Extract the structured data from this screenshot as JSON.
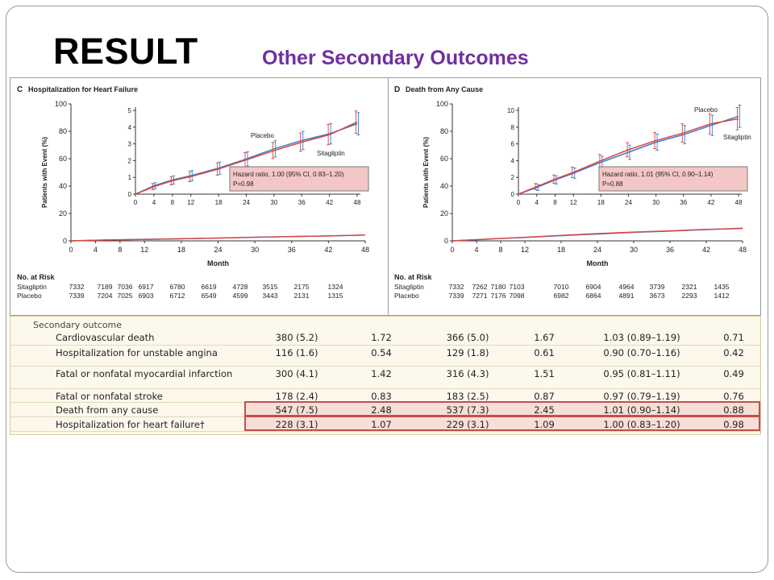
{
  "slide": {
    "title": "RESULT",
    "subtitle": "Other Secondary Outcomes"
  },
  "colors": {
    "sitagliptin": "#3a7bd5",
    "placebo": "#d9453b",
    "subtitle": "#7030a0",
    "highlight": "#c0504d"
  },
  "chart_data": [
    {
      "type": "line",
      "panel_label": "C",
      "title": "Hospitalization for Heart Failure",
      "xlabel": "Month",
      "ylabel": "Patients with Event (%)",
      "x_ticks": [
        0,
        4,
        8,
        12,
        18,
        24,
        30,
        36,
        42,
        48
      ],
      "y_ticks": [
        0,
        20,
        40,
        60,
        80,
        100
      ],
      "ylim": [
        0,
        100
      ],
      "inset": {
        "y_ticks": [
          0,
          1,
          2,
          3,
          4,
          5
        ],
        "ylim": [
          0,
          5
        ],
        "x_ticks": [
          0,
          4,
          8,
          12,
          18,
          24,
          30,
          36,
          42,
          48
        ],
        "annotation_line1": "Hazard ratio, 1.00 (95% CI, 0.83–1.20)",
        "annotation_line2": "P=0.98",
        "curve_labels": [
          "Placebo",
          "Sitagliptin"
        ]
      },
      "x": [
        0,
        4,
        8,
        12,
        18,
        24,
        30,
        36,
        42,
        48
      ],
      "series": [
        {
          "name": "Sitagliptin",
          "values": [
            0,
            0.5,
            0.85,
            1.1,
            1.55,
            2.1,
            2.7,
            3.2,
            3.6,
            4.2
          ]
        },
        {
          "name": "Placebo",
          "values": [
            0,
            0.45,
            0.8,
            1.05,
            1.5,
            2.05,
            2.6,
            3.1,
            3.55,
            4.3
          ]
        }
      ],
      "risk_table": {
        "header": "No. at Risk",
        "rows": [
          {
            "name": "Sitagliptin",
            "values": [
              "7332",
              "7189",
              "7036",
              "6917",
              "6780",
              "6619",
              "4728",
              "3515",
              "2175",
              "1324"
            ]
          },
          {
            "name": "Placebo",
            "values": [
              "7339",
              "7204",
              "7025",
              "6903",
              "6712",
              "6549",
              "4599",
              "3443",
              "2131",
              "1315"
            ]
          }
        ]
      }
    },
    {
      "type": "line",
      "panel_label": "D",
      "title": "Death from Any Cause",
      "xlabel": "Month",
      "ylabel": "Patients with Event (%)",
      "x_ticks": [
        0,
        4,
        8,
        12,
        18,
        24,
        30,
        36,
        42,
        48
      ],
      "y_ticks": [
        0,
        20,
        40,
        60,
        80,
        100
      ],
      "ylim": [
        0,
        100
      ],
      "inset": {
        "y_ticks": [
          0,
          2,
          4,
          6,
          8,
          10
        ],
        "ylim": [
          0,
          10
        ],
        "x_ticks": [
          0,
          4,
          8,
          12,
          18,
          24,
          30,
          36,
          42,
          48
        ],
        "annotation_line1": "Hazard ratio, 1.01 (95% CI, 0.90–1.14)",
        "annotation_line2": "P=0.88",
        "curve_labels": [
          "Placebo",
          "Sitagliptin"
        ]
      },
      "x": [
        0,
        4,
        8,
        12,
        18,
        24,
        30,
        36,
        42,
        48
      ],
      "series": [
        {
          "name": "Sitagliptin",
          "values": [
            0,
            0.8,
            1.7,
            2.5,
            3.8,
            5.0,
            6.2,
            7.1,
            8.2,
            9.3
          ]
        },
        {
          "name": "Placebo",
          "values": [
            0,
            0.9,
            1.8,
            2.6,
            4.0,
            5.3,
            6.4,
            7.3,
            8.4,
            9.0
          ]
        }
      ],
      "risk_table": {
        "header": "No. at Risk",
        "rows": [
          {
            "name": "Sitagliptin",
            "values": [
              "7332",
              "7262",
              "7180",
              "7103",
              "7010",
              "6904",
              "4964",
              "3739",
              "2321",
              "1435"
            ]
          },
          {
            "name": "Placebo",
            "values": [
              "7339",
              "7271",
              "7176",
              "7098",
              "6982",
              "6864",
              "4891",
              "3673",
              "2293",
              "1412"
            ]
          }
        ]
      }
    },
    {
      "type": "table",
      "header": "Secondary outcome",
      "rows": [
        {
          "label": "Cardiovascular death",
          "sita_n": "380 (5.2)",
          "sita_rate": "1.72",
          "plac_n": "366 (5.0)",
          "plac_rate": "1.67",
          "hr": "1.03 (0.89–1.19)",
          "p": "0.71",
          "highlight": false
        },
        {
          "label": "Hospitalization for unstable angina",
          "sita_n": "116 (1.6)",
          "sita_rate": "0.54",
          "plac_n": "129 (1.8)",
          "plac_rate": "0.61",
          "hr": "0.90 (0.70–1.16)",
          "p": "0.42",
          "highlight": false
        },
        {
          "label": "Fatal or nonfatal myocardial infarction",
          "sita_n": "300 (4.1)",
          "sita_rate": "1.42",
          "plac_n": "316 (4.3)",
          "plac_rate": "1.51",
          "hr": "0.95 (0.81–1.11)",
          "p": "0.49",
          "highlight": false
        },
        {
          "label": "Fatal or nonfatal stroke",
          "sita_n": "178 (2.4)",
          "sita_rate": "0.83",
          "plac_n": "183 (2.5)",
          "plac_rate": "0.87",
          "hr": "0.97 (0.79–1.19)",
          "p": "0.76",
          "highlight": false
        },
        {
          "label": "Death from any cause",
          "sita_n": "547 (7.5)",
          "sita_rate": "2.48",
          "plac_n": "537 (7.3)",
          "plac_rate": "2.45",
          "hr": "1.01 (0.90–1.14)",
          "p": "0.88",
          "highlight": true
        },
        {
          "label": "Hospitalization for heart failure†",
          "sita_n": "228 (3.1)",
          "sita_rate": "1.07",
          "plac_n": "229 (3.1)",
          "plac_rate": "1.09",
          "hr": "1.00 (0.83–1.20)",
          "p": "0.98",
          "highlight": true
        }
      ]
    }
  ]
}
